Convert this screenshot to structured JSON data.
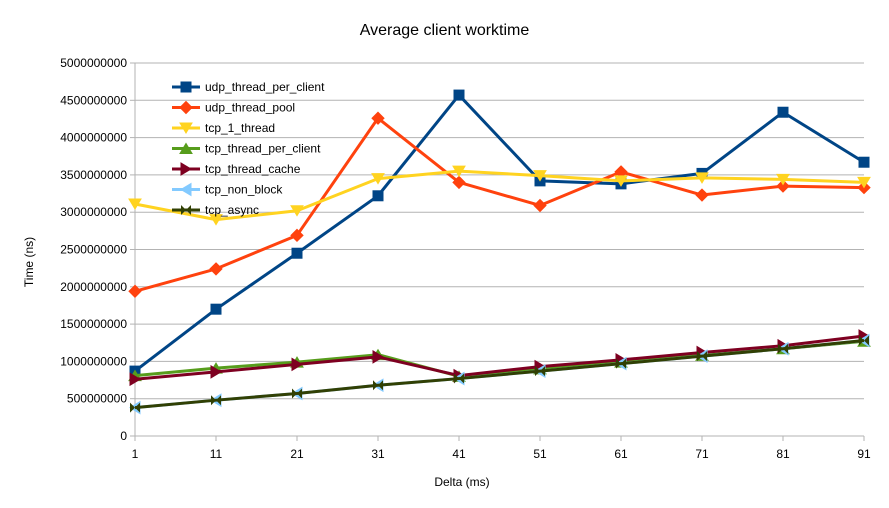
{
  "chart_data": {
    "type": "line",
    "title": "Average client worktime",
    "xlabel": "Delta (ms)",
    "ylabel": "Time (ns)",
    "categories": [
      "1",
      "11",
      "21",
      "31",
      "41",
      "51",
      "61",
      "71",
      "81",
      "91"
    ],
    "ylim": [
      0,
      5000000000
    ],
    "yticks": [
      "0",
      "500000000",
      "1000000000",
      "1500000000",
      "2000000000",
      "2500000000",
      "3000000000",
      "3500000000",
      "4000000000",
      "4500000000",
      "5000000000"
    ],
    "grid": true,
    "legend_position": "top-left",
    "series": [
      {
        "name": "udp_thread_per_client",
        "color": "#004586",
        "marker": "square",
        "values": [
          870000000,
          1700000000,
          2450000000,
          3220000000,
          4570000000,
          3420000000,
          3380000000,
          3520000000,
          4340000000,
          3670000000
        ]
      },
      {
        "name": "udp_thread_pool",
        "color": "#ff420e",
        "marker": "diamond",
        "values": [
          1940000000,
          2240000000,
          2690000000,
          4260000000,
          3400000000,
          3090000000,
          3540000000,
          3230000000,
          3350000000,
          3330000000
        ]
      },
      {
        "name": "tcp_1_thread",
        "color": "#ffd320",
        "marker": "triangle-down",
        "values": [
          3110000000,
          2900000000,
          3020000000,
          3450000000,
          3550000000,
          3490000000,
          3420000000,
          3460000000,
          3440000000,
          3400000000
        ]
      },
      {
        "name": "tcp_thread_per_client",
        "color": "#579d1c",
        "marker": "triangle-up",
        "values": [
          810000000,
          910000000,
          990000000,
          1090000000,
          800000000,
          900000000,
          990000000,
          1080000000,
          1170000000,
          1270000000
        ]
      },
      {
        "name": "tcp_thread_cache",
        "color": "#7e0021",
        "marker": "triangle-right",
        "values": [
          760000000,
          860000000,
          960000000,
          1060000000,
          810000000,
          930000000,
          1020000000,
          1120000000,
          1210000000,
          1340000000
        ]
      },
      {
        "name": "tcp_non_block",
        "color": "#83caff",
        "marker": "arrow-left",
        "values": [
          380000000,
          480000000,
          570000000,
          680000000,
          770000000,
          870000000,
          970000000,
          1070000000,
          1170000000,
          1280000000
        ]
      },
      {
        "name": "tcp_async",
        "color": "#314004",
        "marker": "x",
        "values": [
          380000000,
          480000000,
          570000000,
          680000000,
          770000000,
          870000000,
          970000000,
          1070000000,
          1170000000,
          1280000000
        ]
      }
    ]
  }
}
